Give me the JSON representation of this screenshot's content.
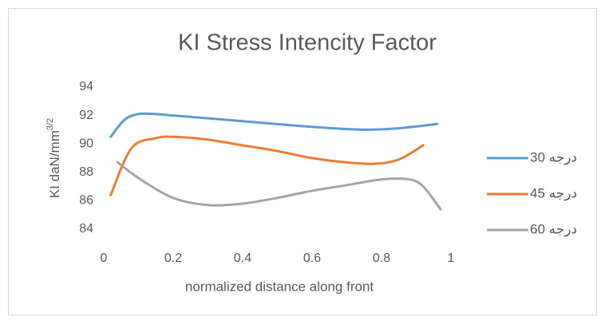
{
  "chart_data": {
    "type": "line",
    "title": "KI Stress Intencity Factor",
    "xlabel": "normalized distance along front",
    "ylabel": {
      "text": "KI daN/mm",
      "superscript": "3/2"
    },
    "xlim": [
      0,
      1
    ],
    "xticks": [
      0,
      0.2,
      0.4,
      0.6,
      0.8,
      1
    ],
    "ylim": [
      84,
      94
    ],
    "yticks": [
      84,
      86,
      88,
      90,
      92,
      94
    ],
    "grid": false,
    "legend": "right",
    "series": [
      {
        "name": "درجه 30",
        "color": "#5b9bd5",
        "x": [
          0.02,
          0.06,
          0.1,
          0.15,
          0.2,
          0.4,
          0.6,
          0.75,
          0.85,
          0.96
        ],
        "values": [
          90.5,
          91.7,
          92.1,
          92.1,
          92.0,
          91.6,
          91.2,
          91.0,
          91.1,
          91.4
        ]
      },
      {
        "name": "درجه 45",
        "color": "#ed7d31",
        "x": [
          0.02,
          0.08,
          0.15,
          0.2,
          0.3,
          0.4,
          0.5,
          0.6,
          0.7,
          0.78,
          0.85,
          0.92
        ],
        "values": [
          86.4,
          89.7,
          90.4,
          90.5,
          90.3,
          89.9,
          89.5,
          89.0,
          88.7,
          88.6,
          88.9,
          89.9
        ]
      },
      {
        "name": "درجه 60",
        "color": "#a5a5a5",
        "x": [
          0.04,
          0.1,
          0.2,
          0.3,
          0.4,
          0.5,
          0.6,
          0.7,
          0.8,
          0.88,
          0.92,
          0.97
        ],
        "values": [
          88.7,
          87.6,
          86.2,
          85.7,
          85.8,
          86.2,
          86.7,
          87.1,
          87.5,
          87.5,
          87.0,
          85.4
        ]
      }
    ]
  }
}
